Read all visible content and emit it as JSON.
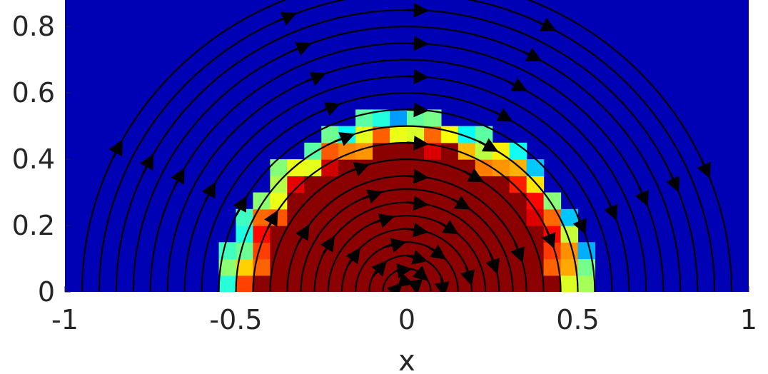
{
  "chart_data": {
    "type": "heatmap",
    "title": "",
    "xlabel": "x",
    "ylabel": "",
    "xlim": [
      -1,
      1
    ],
    "ylim": [
      0,
      0.88
    ],
    "x_ticks": [
      -1,
      -0.5,
      0,
      0.5,
      1
    ],
    "x_tick_labels": [
      "-1",
      "-0.5",
      "0",
      "0.5",
      "1"
    ],
    "y_ticks": [
      0,
      0.2,
      0.4,
      0.6,
      0.8
    ],
    "y_tick_labels": [
      "0",
      "0.2",
      "0.4",
      "0.6",
      "0.8"
    ],
    "colormap": "jet",
    "background_value": 0,
    "interior_value": 1,
    "interface_shape": "half-disk",
    "interface_center": [
      0,
      0
    ],
    "interface_radius": 0.48,
    "overlay": "streamlines (circular flow about the origin) with direction arrows",
    "streamline_radii": [
      0.03,
      0.07,
      0.11,
      0.15,
      0.19,
      0.23,
      0.27,
      0.31,
      0.35,
      0.4,
      0.45,
      0.5,
      0.55,
      0.6,
      0.65,
      0.7,
      0.75,
      0.8,
      0.85,
      0.9,
      0.95
    ],
    "grid": false
  },
  "colors": {
    "background": "#0000b4",
    "interior": "#8b0000",
    "axis_text": "#262626",
    "streamline": "#000000"
  }
}
